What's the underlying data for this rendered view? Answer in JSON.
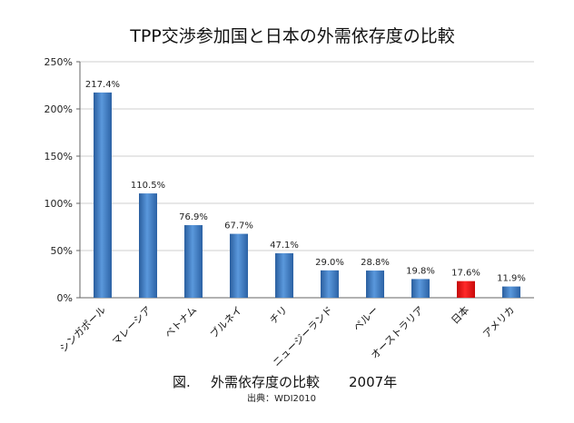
{
  "chart_data": {
    "type": "bar",
    "title": "TPP交渉参加国と日本の外需依存度の比較",
    "categories": [
      "シンガポール",
      "マレーシア",
      "ベトナム",
      "ブルネイ",
      "チリ",
      "ニュージーランド",
      "ペルー",
      "オーストラリア",
      "日本",
      "アメリカ"
    ],
    "values": [
      217.4,
      110.5,
      76.9,
      67.7,
      47.1,
      29.0,
      28.8,
      19.8,
      17.6,
      11.9
    ],
    "data_labels": [
      "217.4%",
      "110.5%",
      "76.9%",
      "67.7%",
      "47.1%",
      "29.0%",
      "28.8%",
      "19.8%",
      "17.6%",
      "11.9%"
    ],
    "ylim": [
      0,
      250
    ],
    "yticks": [
      0,
      50,
      100,
      150,
      200,
      250
    ],
    "ytick_labels": [
      "0%",
      "50%",
      "100%",
      "150%",
      "200%",
      "250%"
    ],
    "grid": true,
    "legend": "none",
    "colors": {
      "bar": "#3d7cc4",
      "bar_highlight": "#e61010",
      "highlight_category": "日本"
    }
  },
  "caption": {
    "figure": "図.",
    "text": "外需依存度の比較",
    "year": "2007年"
  },
  "source": "出典：WDI2010"
}
